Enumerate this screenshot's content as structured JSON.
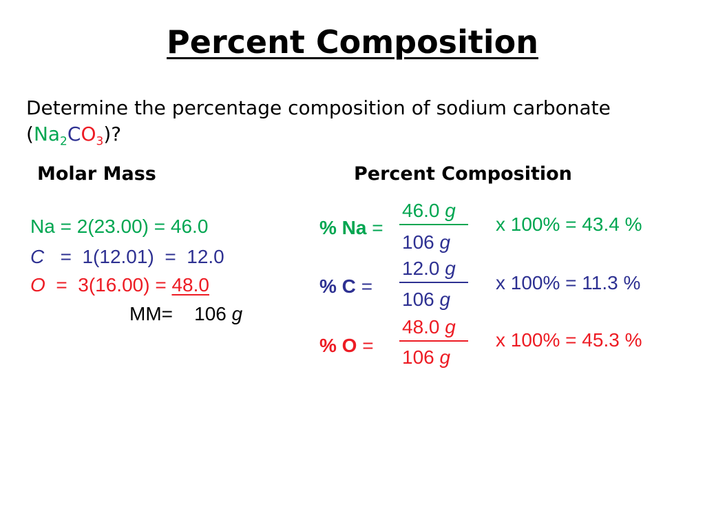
{
  "title": "Percent Composition",
  "question": {
    "text": "Determine the percentage composition of sodium carbonate",
    "formula_open": "(",
    "formula_na": "Na",
    "formula_na_sub": "2",
    "formula_c": "C",
    "formula_o": "O",
    "formula_o_sub": "3",
    "formula_close": ")?"
  },
  "molar_mass": {
    "heading": "Molar Mass",
    "na_line": "Na = 2(23.00) = 46.0",
    "c_sym": "C",
    "c_rest": "=  1(12.01)  =  12.0",
    "o_sym": "O",
    "o_rest": "=  3(16.00) =",
    "o_value": "48.0",
    "mm_label": "MM=",
    "mm_value": "106",
    "mm_unit": "g"
  },
  "percent_composition": {
    "heading": "Percent Composition",
    "rows": [
      {
        "label": "% Na",
        "eq": "=",
        "num_val": "46.0",
        "num_unit": "g",
        "den_val": "106",
        "den_unit": "g",
        "result": "x 100% = 43.4 %"
      },
      {
        "label": "% C",
        "eq": "=",
        "num_val": "12.0",
        "num_unit": "g",
        "den_val": "106",
        "den_unit": "g",
        "result": "x 100% = 11.3 %"
      },
      {
        "label": "% O",
        "eq": "=",
        "num_val": "48.0",
        "num_unit": "g",
        "den_val": "106",
        "den_unit": "g",
        "result": "x 100% = 45.3 %"
      }
    ]
  },
  "colors": {
    "sodium": "#00a651",
    "carbon": "#2e3192",
    "oxygen": "#ed1c24"
  }
}
